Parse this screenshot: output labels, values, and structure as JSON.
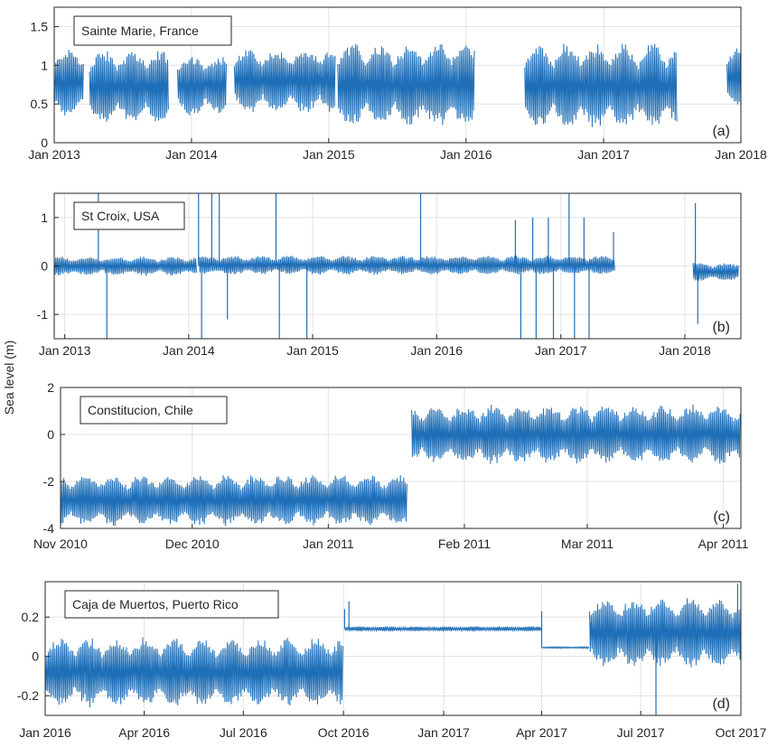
{
  "figure": {
    "ylabel": "Sea level (m)",
    "series_color": "#1f6fb8"
  },
  "chart_data": [
    {
      "type": "line",
      "title": "Sainte Marie, France",
      "panel_label": "(a)",
      "xlabel": "",
      "ylabel": "",
      "x_ticks": [
        "Jan 2013",
        "Jan 2014",
        "Jan 2015",
        "Jan 2016",
        "Jan 2017",
        "Jan 2018"
      ],
      "xlim": [
        "2013-01-01",
        "2018-01-01"
      ],
      "y_ticks": [
        "0",
        "0.5",
        "1",
        "1.5"
      ],
      "ylim": [
        0,
        1.75
      ],
      "grid": true,
      "legend_position": "top-left",
      "segments": [
        {
          "x": [
            "2013-01-01",
            "2013-03-20"
          ],
          "mean": 0.78,
          "range": [
            0.3,
            1.3
          ]
        },
        {
          "x": [
            "2013-04-05",
            "2013-11-01"
          ],
          "mean": 0.72,
          "range": [
            0.2,
            1.3
          ]
        },
        {
          "x": [
            "2013-11-25",
            "2014-04-05"
          ],
          "mean": 0.74,
          "range": [
            0.3,
            1.2
          ]
        },
        {
          "x": [
            "2014-04-25",
            "2015-01-20"
          ],
          "mean": 0.8,
          "range": [
            0.35,
            1.3
          ]
        },
        {
          "x": [
            "2015-01-25",
            "2016-01-25"
          ],
          "mean": 0.75,
          "range": [
            0.15,
            1.4
          ]
        },
        {
          "x": [
            "2016-06-05",
            "2017-07-15"
          ],
          "mean": 0.73,
          "range": [
            0.2,
            1.45
          ]
        },
        {
          "x": [
            "2017-11-25",
            "2018-01-10"
          ],
          "mean": 0.85,
          "range": [
            0.4,
            1.3
          ]
        }
      ]
    },
    {
      "type": "line",
      "title": "St Croix, USA",
      "panel_label": "(b)",
      "xlabel": "",
      "ylabel": "",
      "x_ticks": [
        "Jan 2013",
        "Jan 2014",
        "Jan 2015",
        "Jan 2016",
        "Jan 2017",
        "Jan 2018"
      ],
      "xlim": [
        "2012-12-01",
        "2018-06-15"
      ],
      "y_ticks": [
        "-1",
        "0",
        "1"
      ],
      "ylim": [
        -1.5,
        1.5
      ],
      "grid": true,
      "legend_position": "top-left",
      "segments": [
        {
          "x": [
            "2012-12-01",
            "2014-01-25"
          ],
          "mean": 0.0,
          "range": [
            -0.2,
            0.25
          ]
        },
        {
          "x": [
            "2014-02-01",
            "2017-06-10"
          ],
          "mean": 0.02,
          "range": [
            -0.2,
            0.25
          ]
        },
        {
          "x": [
            "2018-01-25",
            "2018-06-10"
          ],
          "mean": -0.12,
          "range": [
            -0.35,
            0.1
          ]
        }
      ],
      "spikes": [
        {
          "x": "2013-04-10",
          "y": 1.5
        },
        {
          "x": "2013-05-05",
          "y": -1.5
        },
        {
          "x": "2014-01-30",
          "y": 1.5
        },
        {
          "x": "2014-02-08",
          "y": -1.5
        },
        {
          "x": "2014-03-10",
          "y": 1.5
        },
        {
          "x": "2014-04-01",
          "y": 1.5
        },
        {
          "x": "2014-04-25",
          "y": -1.1
        },
        {
          "x": "2014-09-15",
          "y": 1.5
        },
        {
          "x": "2014-09-25",
          "y": -1.5
        },
        {
          "x": "2014-12-15",
          "y": -1.5
        },
        {
          "x": "2015-11-15",
          "y": 1.5
        },
        {
          "x": "2016-08-20",
          "y": 0.95
        },
        {
          "x": "2016-09-05",
          "y": -1.5
        },
        {
          "x": "2016-10-10",
          "y": 1.0
        },
        {
          "x": "2016-10-20",
          "y": -1.5
        },
        {
          "x": "2016-11-25",
          "y": 1.0
        },
        {
          "x": "2016-12-10",
          "y": -1.5
        },
        {
          "x": "2017-01-25",
          "y": 1.5
        },
        {
          "x": "2017-02-10",
          "y": -1.5
        },
        {
          "x": "2017-03-10",
          "y": 1.0
        },
        {
          "x": "2017-03-25",
          "y": -1.5
        },
        {
          "x": "2017-06-05",
          "y": 0.7
        },
        {
          "x": "2018-02-01",
          "y": 1.3
        },
        {
          "x": "2018-02-08",
          "y": -1.2
        }
      ]
    },
    {
      "type": "line",
      "title": "Constitucion, Chile",
      "panel_label": "(c)",
      "xlabel": "",
      "ylabel": "",
      "x_ticks": [
        "Nov 2010",
        "Dec 2010",
        "Jan 2011",
        "Feb 2011",
        "Mar 2011",
        "Apr 2011"
      ],
      "xlim": [
        "2010-11-01",
        "2011-04-05"
      ],
      "y_ticks": [
        "-4",
        "-2",
        "0",
        "2"
      ],
      "ylim": [
        -4,
        2
      ],
      "grid": true,
      "legend_position": "top-left",
      "segments": [
        {
          "x": [
            "2010-11-01",
            "2011-01-19"
          ],
          "mean": -2.8,
          "range": [
            -3.9,
            -1.4
          ]
        },
        {
          "x": [
            "2011-01-20",
            "2011-04-05"
          ],
          "mean": 0.0,
          "range": [
            -1.3,
            1.6
          ]
        }
      ]
    },
    {
      "type": "line",
      "title": "Caja de Muertos, Puerto Rico",
      "panel_label": "(d)",
      "xlabel": "",
      "ylabel": "",
      "x_ticks": [
        "Jan 2016",
        "Apr 2016",
        "Jul 2016",
        "Oct 2016",
        "Jan 2017",
        "Apr 2017",
        "Jul 2017",
        "Oct 2017"
      ],
      "xlim": [
        "2016-01-01",
        "2017-10-01"
      ],
      "y_ticks": [
        "-0.2",
        "0",
        "0.2"
      ],
      "ylim": [
        -0.3,
        0.38
      ],
      "grid": true,
      "legend_position": "top-left",
      "segments": [
        {
          "x": [
            "2016-01-01",
            "2016-10-01"
          ],
          "mean": -0.08,
          "range": [
            -0.3,
            0.1
          ]
        },
        {
          "x": [
            "2016-10-02",
            "2017-04-01"
          ],
          "mean": 0.14,
          "range": [
            0.13,
            0.16
          ]
        },
        {
          "x": [
            "2017-04-01",
            "2017-05-15"
          ],
          "mean": 0.045,
          "range": [
            0.04,
            0.05
          ]
        },
        {
          "x": [
            "2017-05-15",
            "2017-10-01"
          ],
          "mean": 0.12,
          "range": [
            -0.28,
            0.13
          ]
        }
      ],
      "spikes": [
        {
          "x": "2016-10-02",
          "y": 0.24
        },
        {
          "x": "2016-10-06",
          "y": 0.28
        },
        {
          "x": "2017-04-01",
          "y": 0.23
        },
        {
          "x": "2017-05-16",
          "y": 0.17
        },
        {
          "x": "2017-07-15",
          "y": -0.3
        },
        {
          "x": "2017-09-28",
          "y": 0.37
        }
      ]
    }
  ]
}
